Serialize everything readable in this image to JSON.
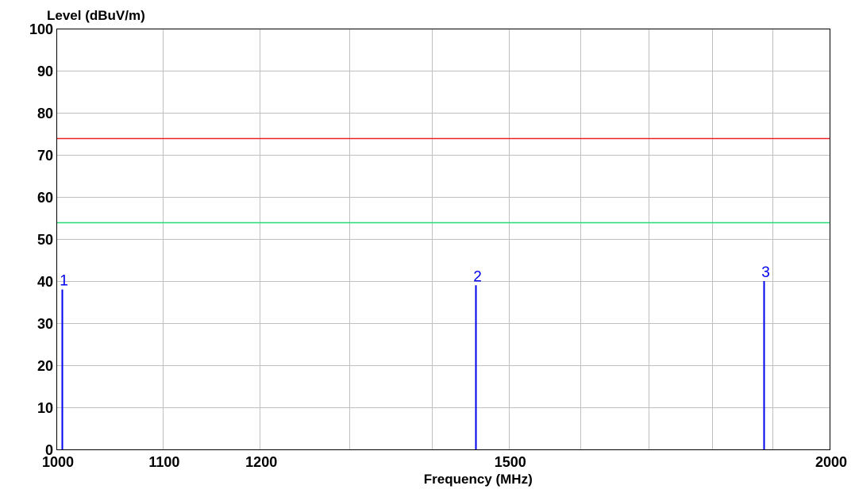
{
  "chart_data": {
    "type": "line",
    "title": "",
    "ylabel": "Level (dBuV/m)",
    "xlabel": "Frequency (MHz)",
    "x_scale": "log",
    "xlim": [
      1000,
      2000
    ],
    "ylim": [
      0,
      100
    ],
    "grid": true,
    "y_ticks": [
      0,
      10,
      20,
      30,
      40,
      50,
      60,
      70,
      80,
      90,
      100
    ],
    "x_tick_labels": [
      {
        "value": 1000,
        "label": "1000"
      },
      {
        "value": 1100,
        "label": "1100"
      },
      {
        "value": 1200,
        "label": "1200"
      },
      {
        "value": 1500,
        "label": "1500"
      },
      {
        "value": 2000,
        "label": "2000"
      }
    ],
    "x_gridlines": [
      1000,
      1100,
      1200,
      1300,
      1400,
      1500,
      1600,
      1700,
      1800,
      1900,
      2000
    ],
    "limit_lines": [
      {
        "level": 74,
        "color": "#ee2222"
      },
      {
        "level": 54,
        "color": "#22dd77"
      }
    ],
    "markers": [
      {
        "label": "1",
        "frequency": 1005,
        "level": 38
      },
      {
        "label": "2",
        "frequency": 1456,
        "level": 39
      },
      {
        "label": "3",
        "frequency": 1885,
        "level": 40
      }
    ],
    "colors": {
      "marker": "#0000ee",
      "grid": "#c0c0c0",
      "frame": "#000000"
    }
  }
}
